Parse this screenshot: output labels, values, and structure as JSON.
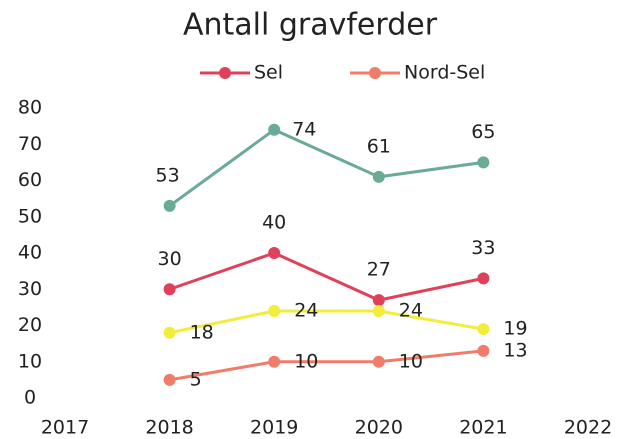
{
  "chart_data": {
    "type": "line",
    "title": "Antall gravferder",
    "x": [
      2018,
      2019,
      2020,
      2021
    ],
    "xlim": [
      2017,
      2022
    ],
    "xticks": [
      2017,
      2018,
      2019,
      2020,
      2021,
      2022
    ],
    "ylim": [
      0,
      80
    ],
    "yticks": [
      0,
      10,
      20,
      30,
      40,
      50,
      60,
      70,
      80
    ],
    "series": [
      {
        "color": "#6aaa96",
        "values": [
          53,
          74,
          61,
          65
        ]
      },
      {
        "name": "Sel",
        "color": "#e0405a",
        "values": [
          30,
          40,
          27,
          33
        ]
      },
      {
        "color": "#f2ec3a",
        "values": [
          18,
          24,
          24,
          19
        ]
      },
      {
        "name": "Nord-Sel",
        "color": "#f07c6a",
        "values": [
          5,
          10,
          10,
          13
        ]
      }
    ],
    "legend": "top"
  }
}
